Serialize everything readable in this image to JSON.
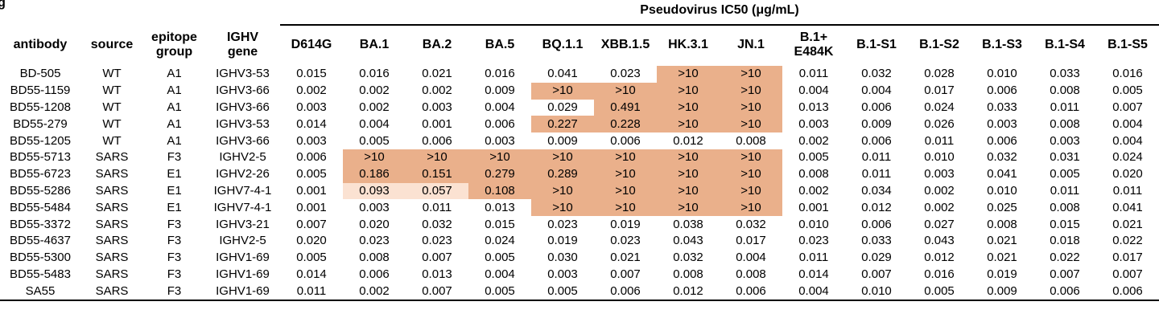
{
  "panel_label": "g",
  "table": {
    "group_header": "Pseudovirus IC50 (μg/mL)",
    "group_from": 4,
    "columns": [
      "antibody",
      "source",
      "epitope\ngroup",
      "IGHV\ngene",
      "D614G",
      "BA.1",
      "BA.2",
      "BA.5",
      "BQ.1.1",
      "XBB.1.5",
      "HK.3.1",
      "JN.1",
      "B.1+\nE484K",
      "B.1-S1",
      "B.1-S2",
      "B.1-S3",
      "B.1-S4",
      "B.1-S5"
    ],
    "rows": [
      [
        "BD-505",
        "WT",
        "A1",
        "IGHV3-53",
        "0.015",
        "0.016",
        "0.021",
        "0.016",
        "0.041",
        "0.023",
        ">10",
        ">10",
        "0.011",
        "0.032",
        "0.028",
        "0.010",
        "0.033",
        "0.016"
      ],
      [
        "BD55-1159",
        "WT",
        "A1",
        "IGHV3-66",
        "0.002",
        "0.002",
        "0.002",
        "0.009",
        ">10",
        ">10",
        ">10",
        ">10",
        "0.004",
        "0.004",
        "0.017",
        "0.006",
        "0.008",
        "0.005"
      ],
      [
        "BD55-1208",
        "WT",
        "A1",
        "IGHV3-66",
        "0.003",
        "0.002",
        "0.003",
        "0.004",
        "0.029",
        "0.491",
        ">10",
        ">10",
        "0.013",
        "0.006",
        "0.024",
        "0.033",
        "0.011",
        "0.007"
      ],
      [
        "BD55-279",
        "WT",
        "A1",
        "IGHV3-53",
        "0.014",
        "0.004",
        "0.001",
        "0.006",
        "0.227",
        "0.228",
        ">10",
        ">10",
        "0.003",
        "0.009",
        "0.026",
        "0.003",
        "0.008",
        "0.004"
      ],
      [
        "BD55-1205",
        "WT",
        "A1",
        "IGHV3-66",
        "0.003",
        "0.005",
        "0.006",
        "0.003",
        "0.009",
        "0.006",
        "0.012",
        "0.008",
        "0.002",
        "0.006",
        "0.011",
        "0.006",
        "0.003",
        "0.004"
      ],
      [
        "BD55-5713",
        "SARS",
        "F3",
        "IGHV2-5",
        "0.006",
        ">10",
        ">10",
        ">10",
        ">10",
        ">10",
        ">10",
        ">10",
        "0.005",
        "0.011",
        "0.010",
        "0.032",
        "0.031",
        "0.024"
      ],
      [
        "BD55-6723",
        "SARS",
        "E1",
        "IGHV2-26",
        "0.005",
        "0.186",
        "0.151",
        "0.279",
        "0.289",
        ">10",
        ">10",
        ">10",
        "0.008",
        "0.011",
        "0.003",
        "0.041",
        "0.005",
        "0.020"
      ],
      [
        "BD55-5286",
        "SARS",
        "E1",
        "IGHV7-4-1",
        "0.001",
        "0.093",
        "0.057",
        "0.108",
        ">10",
        ">10",
        ">10",
        ">10",
        "0.002",
        "0.034",
        "0.002",
        "0.010",
        "0.011",
        "0.011"
      ],
      [
        "BD55-5484",
        "SARS",
        "E1",
        "IGHV7-4-1",
        "0.001",
        "0.003",
        "0.011",
        "0.013",
        ">10",
        ">10",
        ">10",
        ">10",
        "0.001",
        "0.012",
        "0.002",
        "0.025",
        "0.008",
        "0.041"
      ],
      [
        "BD55-3372",
        "SARS",
        "F3",
        "IGHV3-21",
        "0.007",
        "0.020",
        "0.032",
        "0.015",
        "0.023",
        "0.019",
        "0.038",
        "0.032",
        "0.010",
        "0.006",
        "0.027",
        "0.008",
        "0.015",
        "0.021"
      ],
      [
        "BD55-4637",
        "SARS",
        "F3",
        "IGHV2-5",
        "0.020",
        "0.023",
        "0.023",
        "0.024",
        "0.019",
        "0.023",
        "0.043",
        "0.017",
        "0.023",
        "0.033",
        "0.043",
        "0.021",
        "0.018",
        "0.022"
      ],
      [
        "BD55-5300",
        "SARS",
        "F3",
        "IGHV1-69",
        "0.005",
        "0.008",
        "0.007",
        "0.005",
        "0.030",
        "0.021",
        "0.032",
        "0.004",
        "0.011",
        "0.029",
        "0.012",
        "0.021",
        "0.022",
        "0.017"
      ],
      [
        "BD55-5483",
        "SARS",
        "F3",
        "IGHV1-69",
        "0.014",
        "0.006",
        "0.013",
        "0.004",
        "0.003",
        "0.007",
        "0.008",
        "0.008",
        "0.014",
        "0.007",
        "0.016",
        "0.019",
        "0.007",
        "0.007"
      ],
      [
        "SA55",
        "SARS",
        "F3",
        "IGHV1-69",
        "0.011",
        "0.002",
        "0.007",
        "0.005",
        "0.005",
        "0.006",
        "0.012",
        "0.006",
        "0.004",
        "0.010",
        "0.005",
        "0.009",
        "0.006",
        "0.006"
      ]
    ],
    "shading": [
      {
        "row": 0,
        "from": 10,
        "to": 11,
        "color": "#eab08b"
      },
      {
        "row": 1,
        "from": 8,
        "to": 11,
        "color": "#eab08b"
      },
      {
        "row": 2,
        "from": 9,
        "to": 11,
        "color": "#eab08b"
      },
      {
        "row": 3,
        "from": 8,
        "to": 11,
        "color": "#eab08b"
      },
      {
        "row": 5,
        "from": 5,
        "to": 11,
        "color": "#eab08b"
      },
      {
        "row": 6,
        "from": 5,
        "to": 11,
        "color": "#eab08b"
      },
      {
        "row": 7,
        "from": 5,
        "to": 6,
        "color": "#fbe2d2"
      },
      {
        "row": 7,
        "from": 7,
        "to": 11,
        "color": "#eab08b"
      },
      {
        "row": 8,
        "from": 8,
        "to": 11,
        "color": "#eab08b"
      }
    ]
  }
}
